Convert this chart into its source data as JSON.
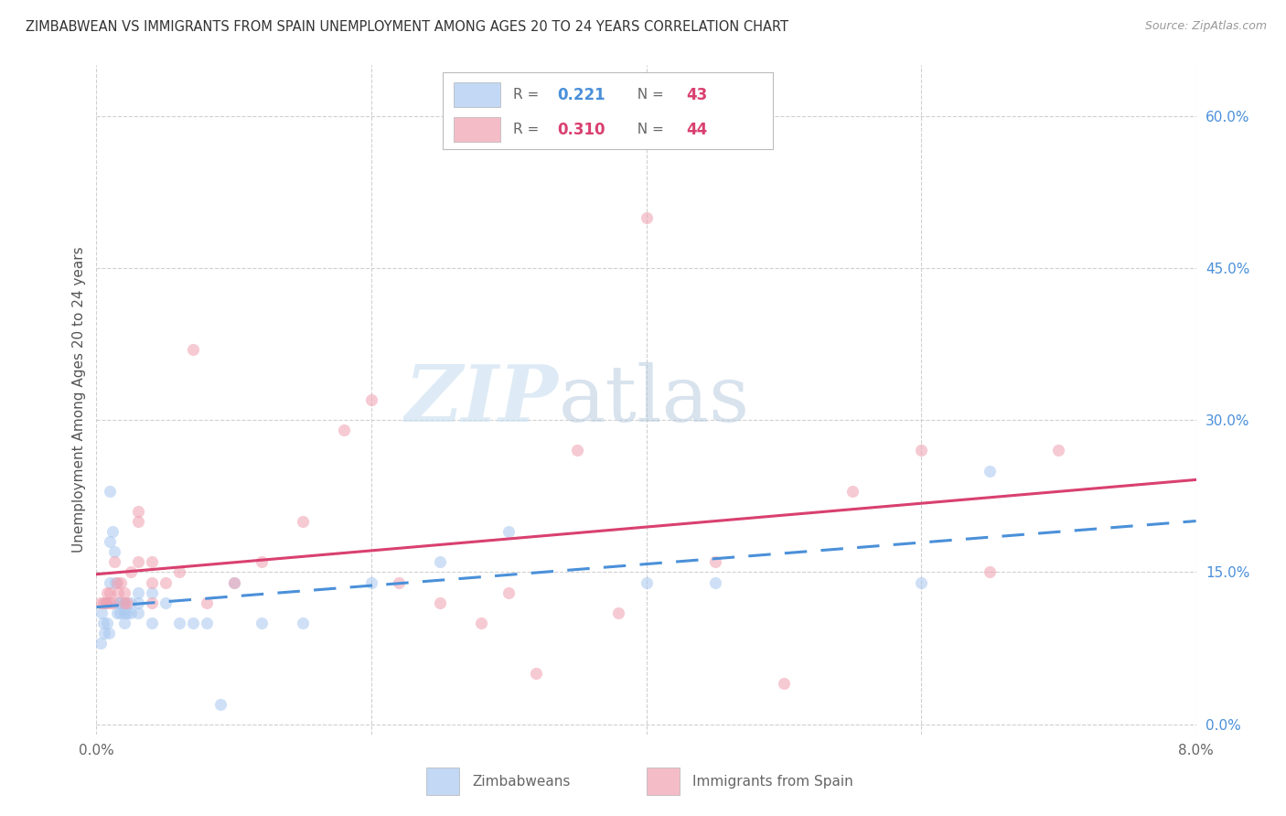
{
  "title": "ZIMBABWEAN VS IMMIGRANTS FROM SPAIN UNEMPLOYMENT AMONG AGES 20 TO 24 YEARS CORRELATION CHART",
  "source": "Source: ZipAtlas.com",
  "ylabel": "Unemployment Among Ages 20 to 24 years",
  "watermark_1": "ZIP",
  "watermark_2": "atlas",
  "xlim": [
    0.0,
    0.08
  ],
  "ylim": [
    -0.01,
    0.65
  ],
  "right_yticks": [
    0.0,
    0.15,
    0.3,
    0.45,
    0.6
  ],
  "right_yticklabels": [
    "0.0%",
    "15.0%",
    "30.0%",
    "45.0%",
    "60.0%"
  ],
  "xtick_vals": [
    0.0,
    0.02,
    0.04,
    0.06,
    0.08
  ],
  "xticklabels": [
    "0.0%",
    "",
    "",
    "",
    "8.0%"
  ],
  "bg": "#ffffff",
  "grid_color": "#d0d0d0",
  "zim_color": "#a8c8f0",
  "spain_color": "#f0a0b0",
  "trend_zim_color": "#4a90d9",
  "trend_spain_color": "#d94070",
  "R_zim": "0.221",
  "N_zim": "43",
  "R_spain": "0.310",
  "N_spain": "44",
  "scatter_alpha": 0.55,
  "scatter_size": 90,
  "zim_x": [
    0.0003,
    0.0004,
    0.0005,
    0.0006,
    0.0007,
    0.0008,
    0.0009,
    0.001,
    0.001,
    0.001,
    0.0012,
    0.0013,
    0.0014,
    0.0015,
    0.0016,
    0.0017,
    0.0018,
    0.002,
    0.002,
    0.002,
    0.0022,
    0.0025,
    0.0025,
    0.003,
    0.003,
    0.003,
    0.004,
    0.004,
    0.005,
    0.006,
    0.007,
    0.008,
    0.009,
    0.01,
    0.012,
    0.015,
    0.02,
    0.025,
    0.03,
    0.04,
    0.045,
    0.06,
    0.065
  ],
  "zim_y": [
    0.08,
    0.11,
    0.1,
    0.09,
    0.12,
    0.1,
    0.09,
    0.23,
    0.18,
    0.14,
    0.19,
    0.17,
    0.14,
    0.11,
    0.12,
    0.11,
    0.12,
    0.12,
    0.11,
    0.1,
    0.11,
    0.12,
    0.11,
    0.13,
    0.12,
    0.11,
    0.13,
    0.1,
    0.12,
    0.1,
    0.1,
    0.1,
    0.02,
    0.14,
    0.1,
    0.1,
    0.14,
    0.16,
    0.19,
    0.14,
    0.14,
    0.14,
    0.25
  ],
  "spain_x": [
    0.0003,
    0.0005,
    0.0007,
    0.0008,
    0.001,
    0.001,
    0.0012,
    0.0013,
    0.0015,
    0.0016,
    0.0018,
    0.002,
    0.002,
    0.0022,
    0.0025,
    0.003,
    0.003,
    0.003,
    0.004,
    0.004,
    0.004,
    0.005,
    0.006,
    0.007,
    0.008,
    0.01,
    0.012,
    0.015,
    0.018,
    0.02,
    0.022,
    0.025,
    0.028,
    0.03,
    0.032,
    0.035,
    0.038,
    0.04,
    0.045,
    0.05,
    0.055,
    0.06,
    0.065,
    0.07
  ],
  "spain_y": [
    0.12,
    0.12,
    0.12,
    0.13,
    0.13,
    0.12,
    0.12,
    0.16,
    0.14,
    0.13,
    0.14,
    0.12,
    0.13,
    0.12,
    0.15,
    0.21,
    0.2,
    0.16,
    0.16,
    0.14,
    0.12,
    0.14,
    0.15,
    0.37,
    0.12,
    0.14,
    0.16,
    0.2,
    0.29,
    0.32,
    0.14,
    0.12,
    0.1,
    0.13,
    0.05,
    0.27,
    0.11,
    0.5,
    0.16,
    0.04,
    0.23,
    0.27,
    0.15,
    0.27
  ]
}
